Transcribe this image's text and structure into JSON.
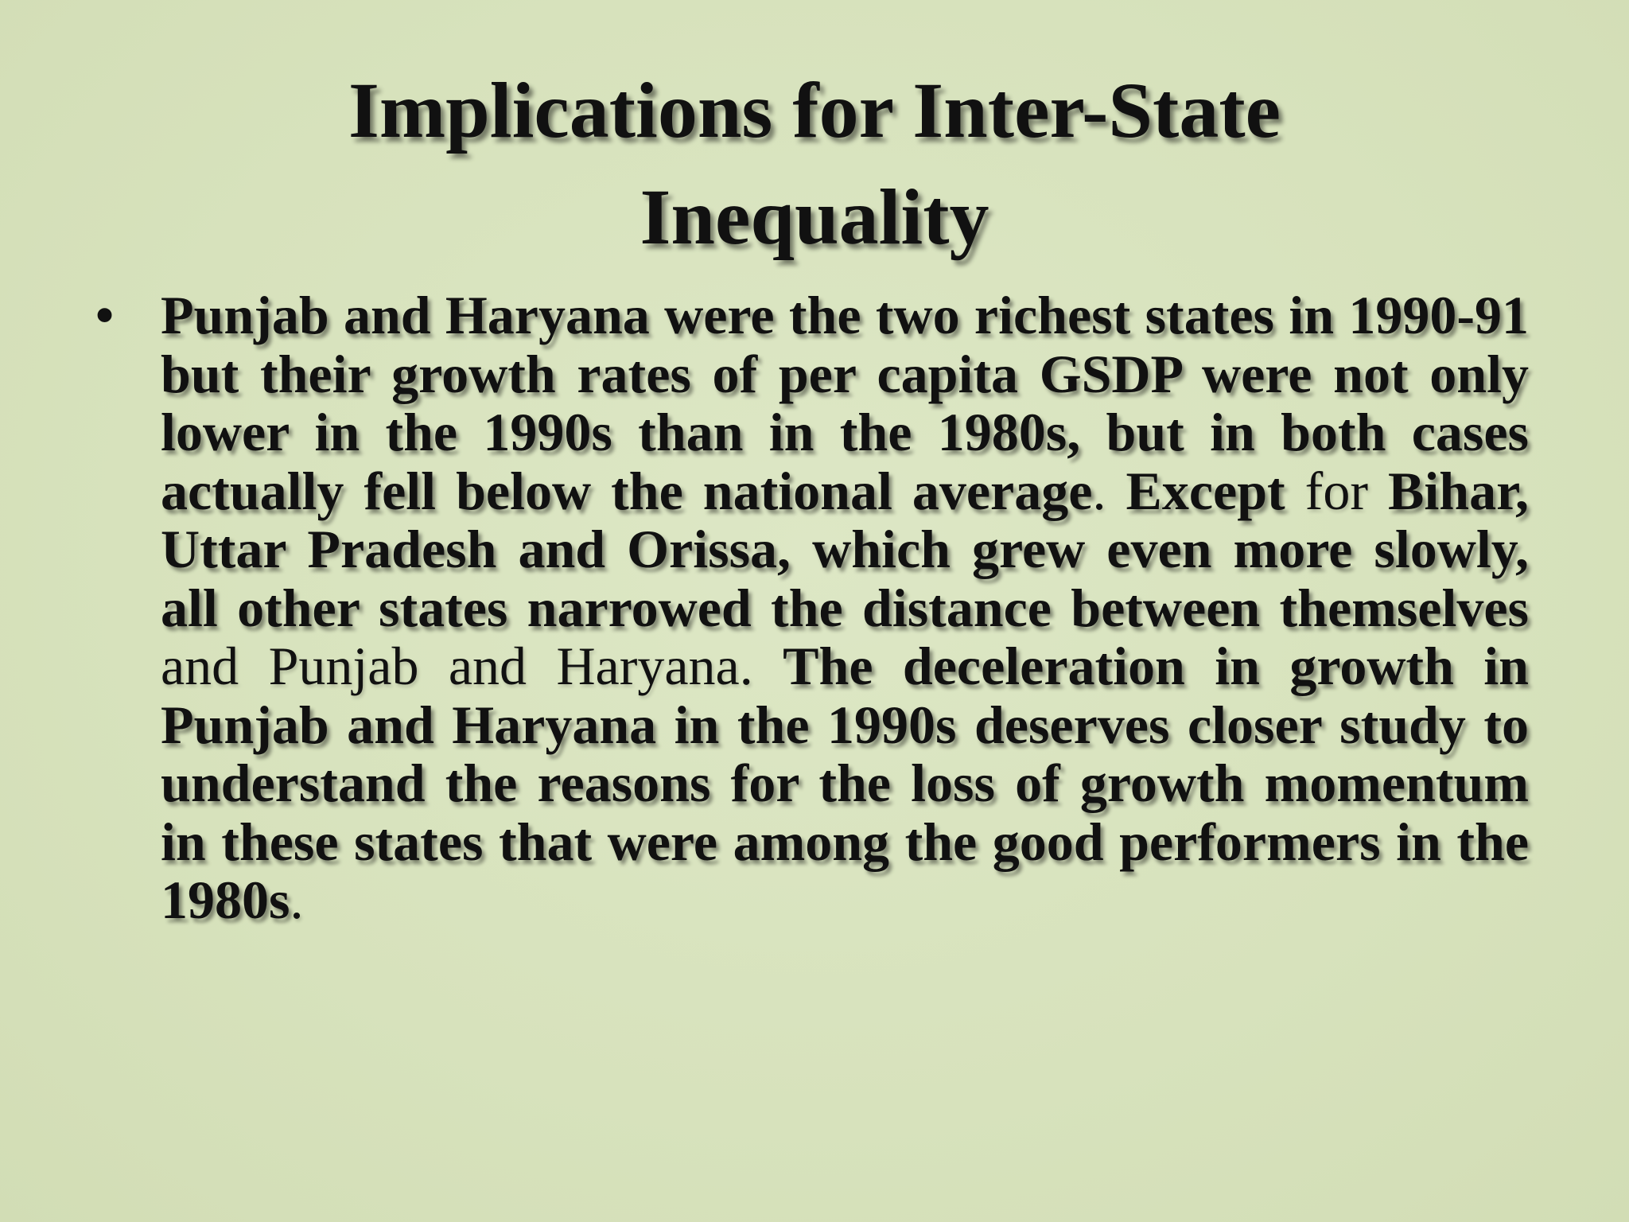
{
  "slide": {
    "title_line1": "Implications for Inter-State",
    "title_line2": "Inequality",
    "bullet_symbol": "•",
    "paragraph_segments": [
      {
        "text": "Punjab and Haryana were the two richest states in 1990-91 but their growth rates of per capita GSDP were not only lower in the 1990s than in the 1980s, but in both cases actually fell below the national average",
        "bold": true
      },
      {
        "text": ". ",
        "bold": false
      },
      {
        "text": "Except",
        "bold": true
      },
      {
        "text": " for ",
        "bold": false
      },
      {
        "text": "Bihar, Uttar Pradesh and Orissa, which grew even more slowly, all other states narrowed the distance between themselves",
        "bold": true
      },
      {
        "text": " and Punjab and Haryana. ",
        "bold": false
      },
      {
        "text": "The deceleration in growth in Punjab and Haryana in the 1990s deserves closer study to understand the reasons for the loss of growth momentum in these states that were among the good performers in the 1980s",
        "bold": true
      },
      {
        "text": ".",
        "bold": false
      }
    ]
  }
}
